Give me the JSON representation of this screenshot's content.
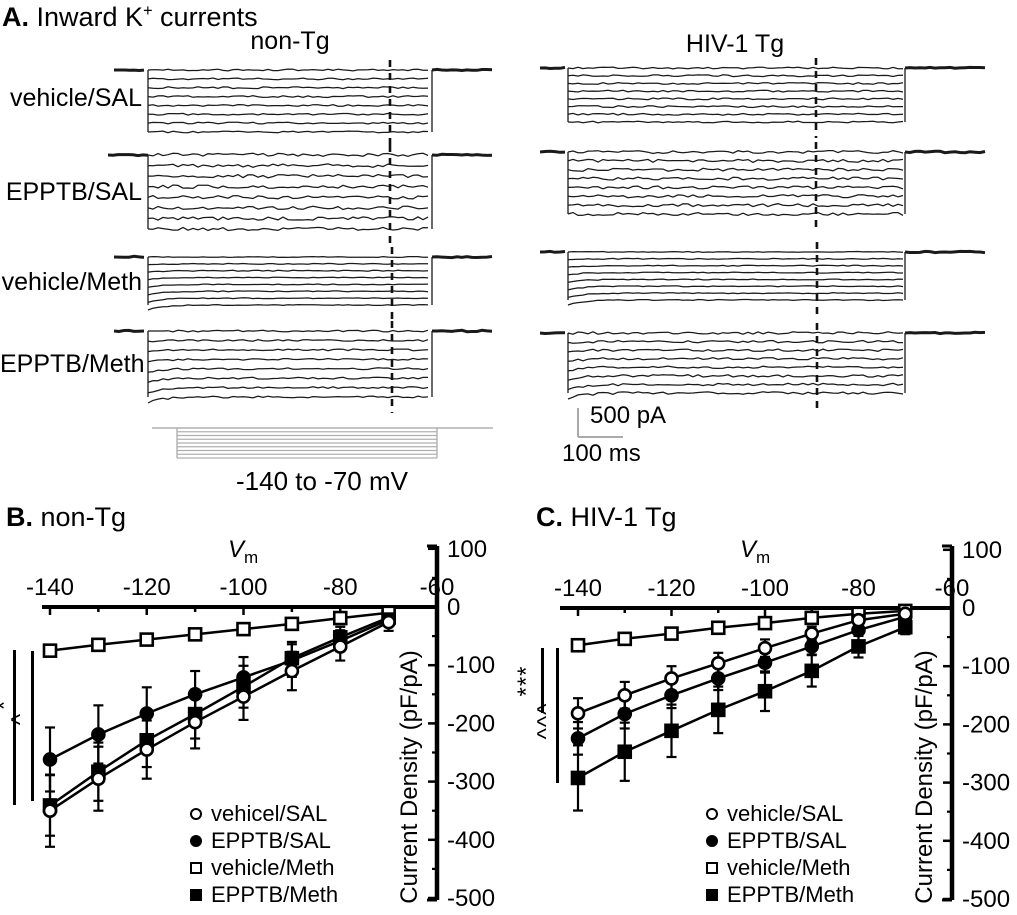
{
  "panel_a": {
    "label": "A.",
    "title_pre": "Inward K",
    "title_sup": "+",
    "title_post": " currents",
    "col_headers": [
      "non-Tg",
      "HIV-1 Tg"
    ],
    "row_labels": [
      "vehicle/SAL",
      "EPPTB/SAL",
      "vehicle/Meth",
      "EPPTB/Meth"
    ],
    "protocol_label": "-140 to -70 mV",
    "scale_current": "500 pA",
    "scale_time": "100 ms"
  },
  "chart_data": [
    {
      "type": "line",
      "panel_label": "B.",
      "title": "non-Tg",
      "xlabel_main": "V",
      "xlabel_sub": "m",
      "ylabel": "Current Density (pF/pA)",
      "x": [
        -140,
        -130,
        -120,
        -110,
        -100,
        -90,
        -80,
        -70
      ],
      "xticks": [
        -140,
        -120,
        -100,
        -80,
        -60
      ],
      "yticks": [
        100,
        0,
        -100,
        -200,
        -300,
        -400,
        -500
      ],
      "xlim": [
        -150,
        -60
      ],
      "ylim": [
        -500,
        100
      ],
      "grid": false,
      "legend_position": "lower-right",
      "series": [
        {
          "name": "vehicel/SAL",
          "marker": "circle",
          "fill": "open",
          "values": [
            -350,
            -295,
            -245,
            -198,
            -154,
            -110,
            -68,
            -26
          ],
          "errors": [
            62,
            55,
            50,
            45,
            40,
            33,
            24,
            15
          ]
        },
        {
          "name": "EPPTB/SAL",
          "marker": "circle",
          "fill": "filled",
          "values": [
            -262,
            -219,
            -183,
            -150,
            -121,
            -92,
            -58,
            -22
          ],
          "errors": [
            55,
            50,
            45,
            40,
            35,
            28,
            18,
            10
          ]
        },
        {
          "name": "vehicle/Meth",
          "marker": "square",
          "fill": "open",
          "values": [
            -75,
            -65,
            -56,
            -47,
            -38,
            -29,
            -19,
            -10
          ],
          "errors": [
            10,
            9,
            8,
            8,
            7,
            6,
            5,
            4
          ]
        },
        {
          "name": "EPPTB/Meth",
          "marker": "square",
          "fill": "filled",
          "values": [
            -341,
            -283,
            -229,
            -184,
            -137,
            -88,
            -52,
            -18
          ],
          "errors": [
            52,
            50,
            46,
            42,
            36,
            28,
            18,
            12
          ]
        }
      ],
      "significance": [
        {
          "symbol": "*"
        },
        {
          "symbol": "^"
        }
      ]
    },
    {
      "type": "line",
      "panel_label": "C.",
      "title": "HIV-1 Tg",
      "xlabel_main": "V",
      "xlabel_sub": "m",
      "ylabel": "Current Density (pF/pA)",
      "x": [
        -140,
        -130,
        -120,
        -110,
        -100,
        -90,
        -80,
        -70
      ],
      "xticks": [
        -140,
        -120,
        -100,
        -80,
        -60
      ],
      "yticks": [
        100,
        0,
        -100,
        -200,
        -300,
        -400,
        -500
      ],
      "xlim": [
        -150,
        -60
      ],
      "ylim": [
        -500,
        100
      ],
      "grid": false,
      "legend_position": "lower-right",
      "series": [
        {
          "name": "vehicle/SAL",
          "marker": "circle",
          "fill": "open",
          "values": [
            -181,
            -150,
            -121,
            -95,
            -69,
            -44,
            -21,
            -10
          ],
          "errors": [
            26,
            23,
            21,
            18,
            15,
            12,
            9,
            6
          ]
        },
        {
          "name": "EPPTB/SAL",
          "marker": "circle",
          "fill": "filled",
          "values": [
            -224,
            -182,
            -150,
            -121,
            -94,
            -66,
            -38,
            -15
          ],
          "errors": [
            28,
            25,
            22,
            20,
            17,
            14,
            10,
            7
          ]
        },
        {
          "name": "vehicle/Meth",
          "marker": "square",
          "fill": "open",
          "values": [
            -64,
            -53,
            -44,
            -34,
            -26,
            -17,
            -10,
            -5
          ],
          "errors": [
            9,
            8,
            8,
            7,
            6,
            5,
            4,
            3
          ]
        },
        {
          "name": "EPPTB/Meth",
          "marker": "square",
          "fill": "filled",
          "values": [
            -292,
            -247,
            -211,
            -175,
            -143,
            -108,
            -66,
            -33
          ],
          "errors": [
            56,
            50,
            45,
            40,
            34,
            27,
            19,
            12
          ]
        }
      ],
      "significance": [
        {
          "symbol": "***"
        },
        {
          "symbol": "^^^"
        }
      ]
    }
  ],
  "colors": {
    "ink": "#000000",
    "trace": "#1a1a1a",
    "protocol_gray": "#b0b0b0",
    "scalebar_gray": "#aaaaaa"
  }
}
